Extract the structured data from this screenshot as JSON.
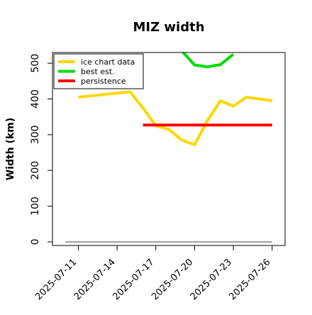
{
  "chart_data": {
    "type": "line",
    "title": "MIZ width",
    "ylabel": "Width (km)",
    "xlabel": "",
    "x_type": "date",
    "xlim": [
      "2025-07-09",
      "2025-07-27"
    ],
    "ylim": [
      -10,
      530
    ],
    "yticks": [
      0,
      100,
      200,
      300,
      400,
      500
    ],
    "xticks": [
      "2025-07-11",
      "2025-07-14",
      "2025-07-17",
      "2025-07-20",
      "2025-07-23",
      "2025-07-26"
    ],
    "grid": false,
    "legend_position": "top-left",
    "series": [
      {
        "name": "ice chart data",
        "color": "#FFD700",
        "x": [
          "2025-07-11",
          "2025-07-15",
          "2025-07-16",
          "2025-07-17",
          "2025-07-18",
          "2025-07-19",
          "2025-07-20",
          "2025-07-21",
          "2025-07-22",
          "2025-07-23",
          "2025-07-24",
          "2025-07-26"
        ],
        "y": [
          405,
          420,
          375,
          325,
          315,
          285,
          272,
          340,
          395,
          380,
          405,
          395
        ]
      },
      {
        "name": "best est.",
        "color": "#00DD00",
        "x": [
          "2025-07-19",
          "2025-07-20",
          "2025-07-21",
          "2025-07-22",
          "2025-07-23"
        ],
        "y": [
          535,
          495,
          490,
          496,
          525
        ]
      },
      {
        "name": "persistence",
        "color": "#FF0000",
        "x": [
          "2025-07-16",
          "2025-07-26"
        ],
        "y": [
          327,
          327
        ]
      },
      {
        "name": "",
        "color": "#808080",
        "x": [
          "2025-07-10",
          "2025-07-26"
        ],
        "y": [
          0,
          0
        ]
      }
    ]
  }
}
